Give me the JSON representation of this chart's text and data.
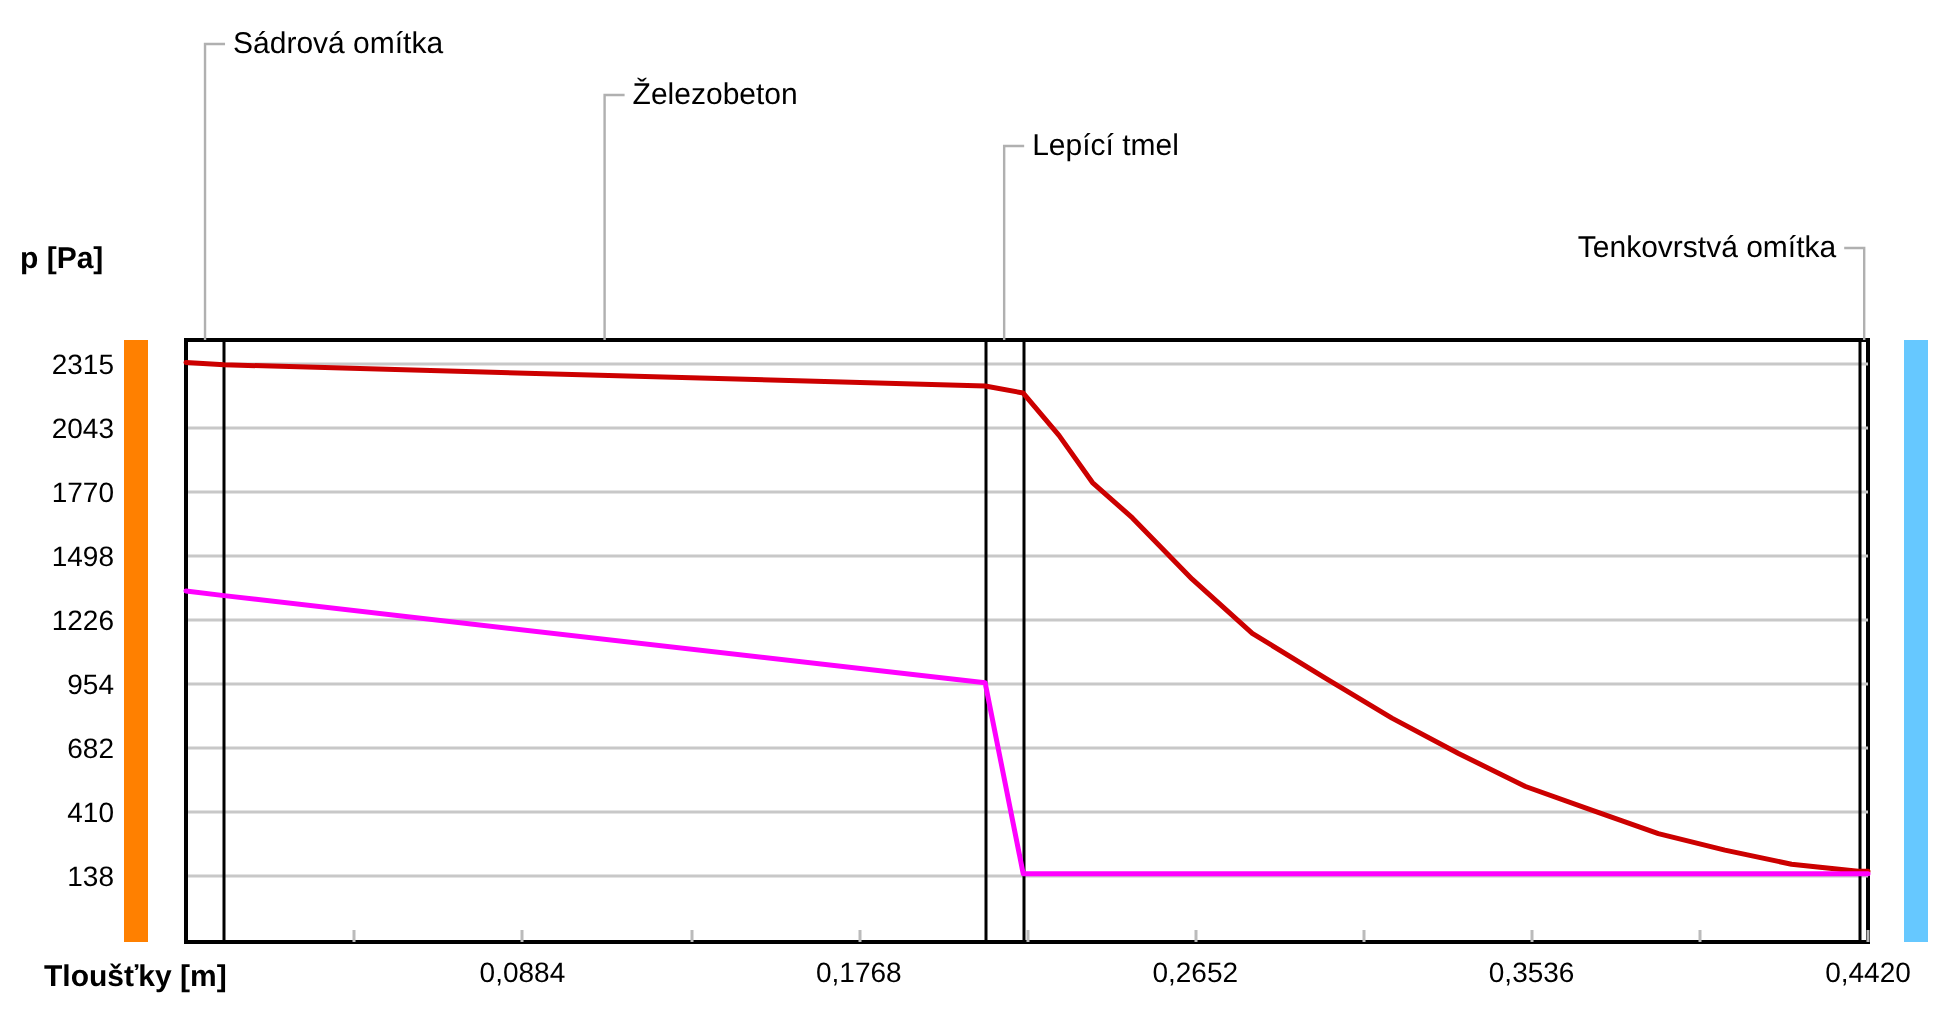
{
  "chart_data": {
    "type": "line",
    "xlabel": "Tloušťky [m]",
    "ylabel": "p [Pa]",
    "xlim": [
      0,
      0.442
    ],
    "ylim": [
      -140,
      2415
    ],
    "xticks": [
      {
        "value": 0.0442,
        "label": null
      },
      {
        "value": 0.0884,
        "label": "0,0884"
      },
      {
        "value": 0.1326,
        "label": null
      },
      {
        "value": 0.1768,
        "label": "0,1768"
      },
      {
        "value": 0.221,
        "label": null
      },
      {
        "value": 0.2652,
        "label": "0,2652"
      },
      {
        "value": 0.3094,
        "label": null
      },
      {
        "value": 0.3536,
        "label": "0,3536"
      },
      {
        "value": 0.3978,
        "label": null
      },
      {
        "value": 0.442,
        "label": "0,4420"
      }
    ],
    "yticks": [
      138,
      410,
      682,
      954,
      1226,
      1498,
      1770,
      2043,
      2315
    ],
    "grid": "y",
    "marker": "none",
    "line_style": "solid",
    "series": [
      {
        "color": "#cc0000",
        "x": [
          0,
          0.01,
          0.21,
          0.22,
          0.2294,
          0.2382,
          0.2487,
          0.2644,
          0.2802,
          0.2994,
          0.3169,
          0.3344,
          0.352,
          0.3694,
          0.3869,
          0.4044,
          0.4219,
          0.4394,
          0.442
        ],
        "values": [
          2320,
          2310,
          2220,
          2190,
          2010,
          1810,
          1660,
          1400,
          1170,
          980,
          810,
          660,
          520,
          420,
          320,
          250,
          190,
          160,
          160
        ]
      },
      {
        "color": "#ff00ff",
        "x": [
          0,
          0.01,
          0.21,
          0.22,
          0.442
        ],
        "values": [
          1350,
          1330,
          960,
          150,
          150
        ]
      }
    ],
    "ref_lines": [
      {
        "axis": "x",
        "value": 0.01,
        "color": "#000000"
      },
      {
        "axis": "x",
        "value": 0.21,
        "color": "#000000"
      },
      {
        "axis": "x",
        "value": 0.22,
        "color": "#000000"
      },
      {
        "axis": "x",
        "value": 0.44,
        "color": "#000000"
      }
    ],
    "annotations": [
      "Sádrová omítka",
      "Železobeton",
      "Lepící tmel",
      "Tenkovrstvá omítka"
    ]
  }
}
